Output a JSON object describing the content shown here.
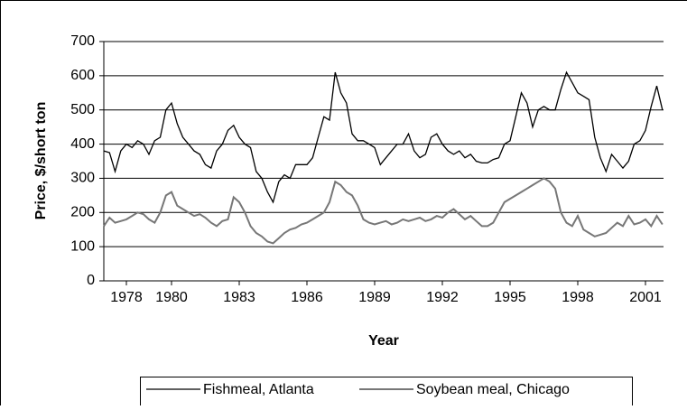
{
  "chart_data": {
    "type": "line",
    "y_label": "Price, $/short ton",
    "x_label": "Year",
    "x": [
      1977,
      1977.25,
      1977.5,
      1977.75,
      1978,
      1978.25,
      1978.5,
      1978.75,
      1979,
      1979.25,
      1979.5,
      1979.75,
      1980,
      1980.25,
      1980.5,
      1980.75,
      1981,
      1981.25,
      1981.5,
      1981.75,
      1982,
      1982.25,
      1982.5,
      1982.75,
      1983,
      1983.25,
      1983.5,
      1983.75,
      1984,
      1984.25,
      1984.5,
      1984.75,
      1985,
      1985.25,
      1985.5,
      1985.75,
      1986,
      1986.25,
      1986.5,
      1986.75,
      1987,
      1987.25,
      1987.5,
      1987.75,
      1988,
      1988.25,
      1988.5,
      1988.75,
      1989,
      1989.25,
      1989.5,
      1989.75,
      1990,
      1990.25,
      1990.5,
      1990.75,
      1991,
      1991.25,
      1991.5,
      1991.75,
      1992,
      1992.25,
      1992.5,
      1992.75,
      1993,
      1993.25,
      1993.5,
      1993.75,
      1994,
      1994.25,
      1994.5,
      1994.75,
      1995,
      1995.25,
      1995.5,
      1995.75,
      1996,
      1996.25,
      1996.5,
      1996.75,
      1997,
      1997.25,
      1997.5,
      1997.75,
      1998,
      1998.25,
      1998.5,
      1998.75,
      1999,
      1999.25,
      1999.5,
      1999.75,
      2000,
      2000.25,
      2000.5,
      2000.75,
      2001,
      2001.25,
      2001.5,
      2001.75
    ],
    "series": [
      {
        "name": "Fishmeal, Atlanta",
        "color": "#000000",
        "values": [
          380,
          375,
          320,
          380,
          400,
          390,
          410,
          400,
          370,
          410,
          420,
          500,
          520,
          460,
          420,
          400,
          380,
          370,
          340,
          330,
          380,
          400,
          440,
          455,
          420,
          400,
          390,
          320,
          300,
          260,
          230,
          290,
          310,
          300,
          340,
          340,
          340,
          360,
          420,
          480,
          470,
          610,
          550,
          520,
          430,
          410,
          410,
          400,
          390,
          340,
          360,
          380,
          400,
          400,
          430,
          380,
          360,
          370,
          420,
          430,
          400,
          380,
          370,
          380,
          360,
          370,
          350,
          345,
          345,
          355,
          360,
          400,
          410,
          480,
          550,
          520,
          450,
          500,
          510,
          500,
          500,
          560,
          610,
          580,
          550,
          540,
          530,
          420,
          360,
          320,
          370,
          350,
          330,
          350,
          400,
          410,
          440,
          510,
          570,
          500
        ]
      },
      {
        "name": "Soybean meal, Chicago",
        "color": "#777777",
        "values": [
          160,
          185,
          170,
          175,
          180,
          190,
          200,
          195,
          180,
          170,
          200,
          250,
          260,
          220,
          210,
          200,
          190,
          195,
          185,
          170,
          160,
          175,
          180,
          245,
          230,
          200,
          160,
          140,
          130,
          115,
          110,
          125,
          140,
          150,
          155,
          165,
          170,
          180,
          190,
          200,
          230,
          290,
          280,
          260,
          250,
          220,
          180,
          170,
          165,
          170,
          175,
          165,
          170,
          180,
          175,
          180,
          185,
          175,
          180,
          190,
          185,
          200,
          210,
          195,
          180,
          190,
          175,
          160,
          160,
          170,
          200,
          230,
          240,
          250,
          260,
          270,
          280,
          290,
          300,
          290,
          270,
          200,
          170,
          160,
          190,
          150,
          140,
          130,
          135,
          140,
          155,
          170,
          160,
          190,
          165,
          170,
          180,
          160,
          190,
          165
        ]
      }
    ],
    "xlim": [
      1977,
      2001.8
    ],
    "xticks": [
      1978,
      1980,
      1983,
      1986,
      1989,
      1992,
      1995,
      1998,
      2001
    ],
    "ylim": [
      0,
      700
    ],
    "yticks": [
      0,
      100,
      200,
      300,
      400,
      500,
      600,
      700
    ],
    "grid": true
  }
}
